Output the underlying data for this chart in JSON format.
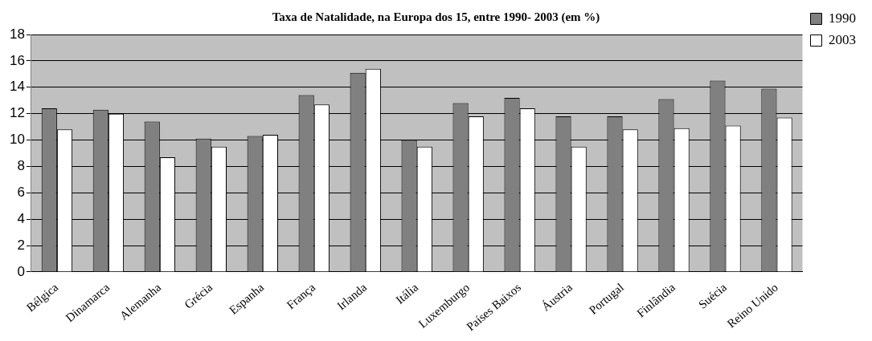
{
  "chart_data": {
    "type": "bar",
    "title": "Taxa de Natalidade, na Europa dos 15, entre 1990- 2003 (em %)",
    "categories": [
      "Bélgica",
      "Dinamarca",
      "Alemanha",
      "Grécia",
      "Espanha",
      "França",
      "Irlanda",
      "Itália",
      "Luxemburgo",
      "Países Baixos",
      "Áustria",
      "Portugal",
      "Finlândia",
      "Suécia",
      "Reino Unido"
    ],
    "series": [
      {
        "name": "1990",
        "color": "#808080",
        "values": [
          12.4,
          12.3,
          11.4,
          10.1,
          10.3,
          13.4,
          15.1,
          10.0,
          12.8,
          13.2,
          11.8,
          11.8,
          13.1,
          14.5,
          13.9
        ]
      },
      {
        "name": "2003",
        "color": "#ffffff",
        "values": [
          10.8,
          12.0,
          8.7,
          9.5,
          10.4,
          12.7,
          15.4,
          9.5,
          11.8,
          12.4,
          9.5,
          10.8,
          10.9,
          11.1,
          11.7
        ]
      }
    ],
    "ylim": [
      0,
      18
    ],
    "yticks": [
      0,
      2,
      4,
      6,
      8,
      10,
      12,
      14,
      16,
      18
    ],
    "grid": "y",
    "legend": "top right"
  }
}
